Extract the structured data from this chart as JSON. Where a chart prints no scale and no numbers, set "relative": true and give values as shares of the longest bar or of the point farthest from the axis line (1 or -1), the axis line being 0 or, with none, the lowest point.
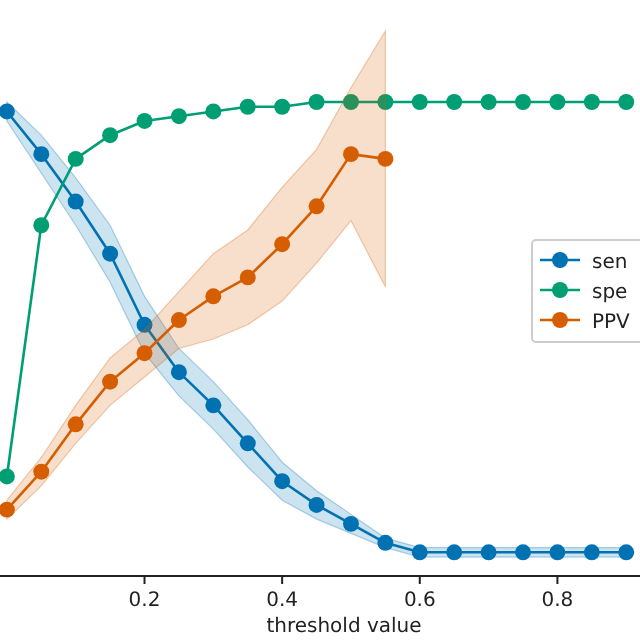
{
  "chart_data": {
    "type": "line",
    "relative": true,
    "xlabel": "threshold value",
    "x": [
      0,
      0.05,
      0.1,
      0.15,
      0.2,
      0.25,
      0.3,
      0.35,
      0.4,
      0.45,
      0.5,
      0.55,
      0.6,
      0.65,
      0.7,
      0.75,
      0.8,
      0.85,
      0.9
    ],
    "xlim": [
      -0.01,
      0.92
    ],
    "xticks": [
      {
        "value": 0.2,
        "label": "0.2"
      },
      {
        "value": 0.4,
        "label": "0.4"
      },
      {
        "value": 0.6,
        "label": "0.6"
      },
      {
        "value": 0.8,
        "label": "0.8"
      }
    ],
    "marker": "circle",
    "grid": false,
    "legend": "right",
    "series": [
      {
        "name": "sen",
        "color": "#0072b2",
        "values": [
          0.98,
          0.89,
          0.79,
          0.68,
          0.53,
          0.43,
          0.36,
          0.28,
          0.2,
          0.15,
          0.11,
          0.07,
          0.05,
          0.05,
          0.05,
          0.05,
          0.05,
          0.05,
          0.05
        ],
        "lower": [
          0.96,
          0.85,
          0.74,
          0.62,
          0.47,
          0.38,
          0.31,
          0.23,
          0.16,
          0.12,
          0.09,
          0.06,
          0.04,
          0.04,
          0.04,
          0.04,
          0.04,
          0.04,
          0.04
        ],
        "upper": [
          1,
          0.93,
          0.84,
          0.74,
          0.59,
          0.48,
          0.41,
          0.33,
          0.24,
          0.18,
          0.13,
          0.08,
          0.06,
          0.06,
          0.06,
          0.06,
          0.06,
          0.06,
          0.06
        ]
      },
      {
        "name": "spe",
        "color": "#009e73",
        "values": [
          0.21,
          0.74,
          0.88,
          0.93,
          0.96,
          0.97,
          0.98,
          0.99,
          0.99,
          1,
          1,
          1,
          1,
          1,
          1,
          1,
          1,
          1,
          1
        ]
      },
      {
        "name": "PPV",
        "color": "#d55e00",
        "values": [
          0.14,
          0.22,
          0.32,
          0.41,
          0.47,
          0.54,
          0.59,
          0.63,
          0.7,
          0.78,
          0.89,
          0.88,
          null,
          null,
          null,
          null,
          null,
          null,
          null
        ],
        "lower": [
          0.12,
          0.19,
          0.28,
          0.36,
          0.42,
          0.48,
          0.5,
          0.53,
          0.58,
          0.66,
          0.75,
          0.61,
          null,
          null,
          null,
          null,
          null,
          null,
          null
        ],
        "upper": [
          0.16,
          0.25,
          0.36,
          0.46,
          0.52,
          0.6,
          0.68,
          0.73,
          0.82,
          0.9,
          1.03,
          1.15,
          null,
          null,
          null,
          null,
          null,
          null,
          null
        ]
      }
    ]
  }
}
